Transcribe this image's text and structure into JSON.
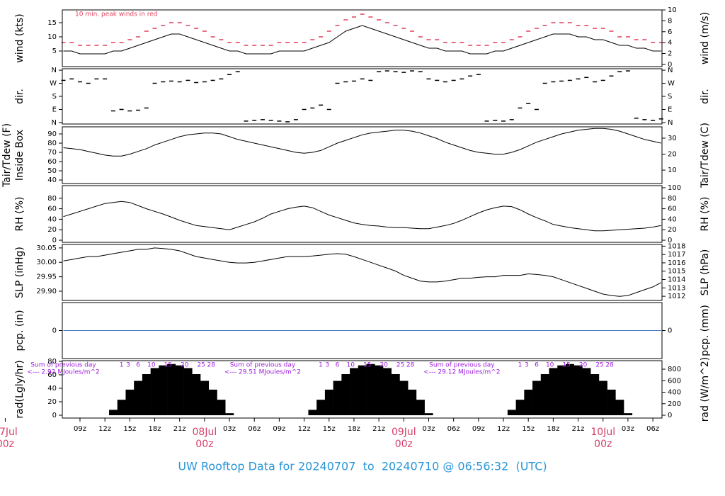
{
  "chart_data": {
    "type": "line",
    "title": "UW Rooftop Data for 20240707  to  20240710 @ 06:56:32  (UTC)",
    "x": [
      7,
      8,
      9,
      10,
      11,
      12,
      13,
      14,
      15,
      16,
      17,
      18,
      19,
      20,
      21,
      22,
      23,
      24,
      25,
      26,
      27,
      28,
      29,
      30,
      31,
      32,
      33,
      34,
      35,
      36,
      37,
      38,
      39,
      40,
      41,
      42,
      43,
      44,
      45,
      46,
      47,
      48,
      49,
      50,
      51,
      52,
      53,
      54,
      55,
      56,
      57,
      58,
      59,
      60,
      61,
      62,
      63,
      64,
      65,
      66,
      67,
      68,
      69,
      70,
      71,
      72,
      73,
      74,
      75,
      76,
      77,
      78,
      79
    ],
    "xlim": [
      6.87,
      79.1
    ],
    "xticks": [
      {
        "value": 9,
        "label": "09z"
      },
      {
        "value": 12,
        "label": "12z"
      },
      {
        "value": 15,
        "label": "15z"
      },
      {
        "value": 18,
        "label": "18z"
      },
      {
        "value": 21,
        "label": "21z"
      },
      {
        "value": 27,
        "label": "03z"
      },
      {
        "value": 30,
        "label": "06z"
      },
      {
        "value": 33,
        "label": "09z"
      },
      {
        "value": 36,
        "label": "12z"
      },
      {
        "value": 39,
        "label": "15z"
      },
      {
        "value": 42,
        "label": "18z"
      },
      {
        "value": 45,
        "label": "21z"
      },
      {
        "value": 51,
        "label": "03z"
      },
      {
        "value": 54,
        "label": "06z"
      },
      {
        "value": 57,
        "label": "09z"
      },
      {
        "value": 60,
        "label": "12z"
      },
      {
        "value": 63,
        "label": "15z"
      },
      {
        "value": 66,
        "label": "18z"
      },
      {
        "value": 69,
        "label": "21z"
      },
      {
        "value": 75,
        "label": "03z"
      },
      {
        "value": 78,
        "label": "06z"
      }
    ],
    "date_labels": [
      {
        "value": 0,
        "label": "07Jul",
        "time": "00z"
      },
      {
        "value": 24,
        "label": "08Jul",
        "time": "00z"
      },
      {
        "value": 48,
        "label": "09Jul",
        "time": "00z"
      },
      {
        "value": 72,
        "label": "10Jul",
        "time": "00z"
      }
    ],
    "date_color": "#d4406a",
    "panels": [
      {
        "type": "line",
        "ylabel": "wind (kts)",
        "y2label": "wind (m/s)",
        "annotation": "10 min. peak winds in red",
        "annotation_color": "#e0405a",
        "ylim": [
          -0.5,
          19.5
        ],
        "yticks": [
          5,
          10,
          15
        ],
        "y2lim": [
          -0.4,
          10
        ],
        "y2ticks": [
          0,
          2,
          4,
          6,
          8,
          10
        ],
        "series": [
          {
            "type": "dash",
            "color": "#e0405a",
            "values": [
              8,
              8,
              7,
              7,
              7,
              7,
              8,
              8,
              9,
              10,
              12,
              13,
              14,
              15,
              15,
              14,
              13,
              12,
              10,
              9,
              8,
              8,
              7,
              7,
              7,
              7,
              8,
              8,
              8,
              8,
              9,
              10,
              12,
              14,
              16,
              17,
              18,
              17,
              16,
              15,
              14,
              13,
              12,
              10,
              9,
              9,
              8,
              8,
              8,
              7,
              7,
              7,
              8,
              8,
              9,
              10,
              12,
              13,
              14,
              15,
              15,
              15,
              14,
              14,
              13,
              13,
              12,
              10,
              10,
              9,
              9,
              8,
              8
            ]
          },
          {
            "type": "line",
            "color": "#000000",
            "values": [
              5,
              5,
              4,
              4,
              4,
              4,
              5,
              5,
              6,
              7,
              8,
              9,
              10,
              11,
              11,
              10,
              9,
              8,
              7,
              6,
              5,
              5,
              4,
              4,
              4,
              4,
              5,
              5,
              5,
              5,
              6,
              7,
              8,
              10,
              12,
              13,
              14,
              13,
              12,
              11,
              10,
              9,
              8,
              7,
              6,
              6,
              5,
              5,
              5,
              4,
              4,
              4,
              5,
              5,
              6,
              7,
              8,
              9,
              10,
              11,
              11,
              11,
              10,
              10,
              9,
              9,
              8,
              7,
              7,
              6,
              6,
              5,
              5
            ]
          }
        ]
      },
      {
        "type": "scatter",
        "ylabel": "dir.",
        "y2label": "dir.",
        "ylim": [
          -10,
          370
        ],
        "yticks": [
          {
            "value": 0,
            "label": "N"
          },
          {
            "value": 90,
            "label": "E"
          },
          {
            "value": 180,
            "label": "S"
          },
          {
            "value": 270,
            "label": "W"
          },
          {
            "value": 360,
            "label": "N"
          }
        ],
        "y2lim": [
          -10,
          370
        ],
        "y2ticks": [
          {
            "value": 0,
            "label": "N"
          },
          {
            "value": 90,
            "label": "E"
          },
          {
            "value": 180,
            "label": "S"
          },
          {
            "value": 270,
            "label": "W"
          },
          {
            "value": 360,
            "label": "N"
          }
        ],
        "series": [
          {
            "type": "dash",
            "color": "#000000",
            "values": [
              290,
              300,
              280,
              270,
              300,
              300,
              80,
              90,
              80,
              85,
              100,
              270,
              280,
              285,
              280,
              290,
              275,
              280,
              290,
              300,
              330,
              350,
              10,
              15,
              20,
              15,
              10,
              5,
              20,
              90,
              100,
              120,
              90,
              270,
              280,
              285,
              300,
              290,
              350,
              355,
              350,
              345,
              355,
              350,
              300,
              290,
              280,
              290,
              300,
              320,
              330,
              10,
              15,
              10,
              20,
              100,
              130,
              90,
              270,
              280,
              285,
              290,
              300,
              310,
              280,
              290,
              320,
              350,
              355,
              30,
              20,
              15,
              25
            ]
          }
        ]
      },
      {
        "type": "line",
        "ylabel": "Tair/Tdew (F)",
        "ylabel_inner": "Inside Box",
        "y2label": "Tair/Tdew (C)",
        "ylim": [
          36.2,
          97.7
        ],
        "yticks": [
          40,
          50,
          60,
          70,
          80,
          90
        ],
        "y2lim": [
          1.6,
          37.1
        ],
        "y2ticks": [
          10,
          20,
          30
        ],
        "series": [
          {
            "type": "line",
            "color": "#000000",
            "values": [
              75,
              74,
              73,
              71,
              69,
              67,
              66,
              66,
              68,
              71,
              74,
              78,
              81,
              84,
              87,
              89,
              90,
              91,
              91,
              90,
              87,
              84,
              82,
              80,
              78,
              76,
              74,
              72,
              70,
              69,
              70,
              72,
              76,
              80,
              83,
              86,
              89,
              91,
              92,
              93,
              94,
              94,
              93,
              91,
              88,
              85,
              81,
              78,
              75,
              72,
              70,
              69,
              68,
              68,
              70,
              73,
              77,
              81,
              84,
              87,
              90,
              92,
              94,
              95,
              96,
              96,
              95,
              93,
              90,
              87,
              84,
              82,
              80
            ]
          }
        ]
      },
      {
        "type": "line",
        "ylabel": "RH (%)",
        "y2label": "RH (%)",
        "ylim": [
          -4,
          104
        ],
        "yticks": [
          0,
          20,
          40,
          60,
          80
        ],
        "y2lim": [
          -4,
          104
        ],
        "y2ticks": [
          0,
          20,
          40,
          60,
          80,
          100
        ],
        "series": [
          {
            "type": "line",
            "color": "#000000",
            "values": [
              45,
              50,
              55,
              60,
              65,
              70,
              72,
              74,
              72,
              66,
              60,
              55,
              50,
              44,
              38,
              33,
              28,
              26,
              24,
              22,
              20,
              25,
              30,
              35,
              42,
              50,
              55,
              60,
              63,
              65,
              62,
              55,
              48,
              43,
              38,
              33,
              30,
              28,
              27,
              25,
              24,
              24,
              23,
              22,
              22,
              25,
              28,
              32,
              38,
              45,
              52,
              58,
              62,
              65,
              64,
              58,
              50,
              43,
              37,
              30,
              27,
              24,
              22,
              20,
              18,
              18,
              19,
              20,
              21,
              22,
              23,
              25,
              28
            ]
          }
        ]
      },
      {
        "type": "line",
        "ylabel": "SLP (inHg)",
        "y2label": "SLP (hPa)",
        "ylim": [
          29.868,
          30.062
        ],
        "yticks": [
          {
            "value": 29.9,
            "label": "29.90"
          },
          29.95,
          {
            "value": 30,
            "label": "30.00"
          },
          30.05
        ],
        "y2lim": [
          1011.5,
          1018.2
        ],
        "y2ticks": [
          1012,
          1013,
          1014,
          1015,
          1016,
          1017,
          1018
        ],
        "series": [
          {
            "type": "line",
            "color": "#000000",
            "values": [
              30.005,
              30.01,
              30.015,
              30.02,
              30.02,
              30.025,
              30.03,
              30.035,
              30.04,
              30.045,
              30.045,
              30.05,
              30.048,
              30.045,
              30.04,
              30.03,
              30.02,
              30.015,
              30.01,
              30.005,
              30.0,
              29.998,
              29.998,
              30.0,
              30.005,
              30.01,
              30.015,
              30.02,
              30.02,
              30.02,
              30.022,
              30.025,
              30.028,
              30.03,
              30.028,
              30.02,
              30.01,
              30.0,
              29.99,
              29.98,
              29.97,
              29.955,
              29.945,
              29.935,
              29.932,
              29.932,
              29.935,
              29.94,
              29.945,
              29.945,
              29.948,
              29.95,
              29.95,
              29.955,
              29.955,
              29.955,
              29.96,
              29.958,
              29.955,
              29.95,
              29.94,
              29.93,
              29.92,
              29.91,
              29.9,
              29.89,
              29.885,
              29.882,
              29.885,
              29.895,
              29.905,
              29.915,
              29.93
            ]
          }
        ]
      },
      {
        "type": "line",
        "ylabel": "pcp. (in)",
        "y2label": "pcp. (mm)",
        "ylim": [
          -1,
          1
        ],
        "yticks": [
          0
        ],
        "y2lim": [
          -1,
          1
        ],
        "y2ticks": [
          0
        ],
        "series": [
          {
            "type": "line",
            "color": "#4472c4",
            "values": [
              0,
              0,
              0,
              0,
              0,
              0,
              0,
              0,
              0,
              0,
              0,
              0,
              0,
              0,
              0,
              0,
              0,
              0,
              0,
              0,
              0,
              0,
              0,
              0,
              0,
              0,
              0,
              0,
              0,
              0,
              0,
              0,
              0,
              0,
              0,
              0,
              0,
              0,
              0,
              0,
              0,
              0,
              0,
              0,
              0,
              0,
              0,
              0,
              0,
              0,
              0,
              0,
              0,
              0,
              0,
              0,
              0,
              0,
              0,
              0,
              0,
              0,
              0,
              0,
              0,
              0,
              0,
              0,
              0,
              0,
              0,
              0,
              0
            ]
          }
        ]
      },
      {
        "type": "bar",
        "ylabel": "rad(Lgly/hr)",
        "y2label": "rad (W/m^2)",
        "ylim": [
          -4.2,
          81
        ],
        "yticks": [
          0,
          20,
          40,
          60,
          80
        ],
        "y2lim": [
          -49,
          948
        ],
        "y2ticks": [
          0,
          200,
          400,
          600,
          800
        ],
        "note_color": "#a020e0",
        "notes": [
          {
            "title": "Sum of previous day",
            "text": "<--- 2.92 MJoules/m^2"
          },
          {
            "title": "Sum of previous day",
            "text": "<--- 29.51 MJoules/m^2"
          },
          {
            "title": "Sum of previous day",
            "text": "<--- 29.12 MJoules/m^2"
          }
        ],
        "hour_marks": [
          1,
          3,
          6,
          10,
          15,
          20,
          25,
          28
        ],
        "series": [
          {
            "type": "bar",
            "color": "#000000",
            "values": [
              0,
              0,
              0,
              0,
              0,
              0,
              8,
              23,
              38,
              51,
              61,
              70,
              74,
              76,
              74,
              70,
              61,
              51,
              38,
              23,
              3,
              0,
              0,
              0,
              0,
              0,
              0,
              0,
              0,
              0,
              8,
              23,
              38,
              51,
              61,
              70,
              74,
              76,
              74,
              70,
              61,
              51,
              38,
              23,
              3,
              0,
              0,
              0,
              0,
              0,
              0,
              0,
              0,
              0,
              8,
              23,
              38,
              51,
              61,
              70,
              74,
              76,
              74,
              70,
              61,
              51,
              38,
              23,
              3,
              0,
              0,
              0,
              0
            ]
          }
        ]
      }
    ]
  }
}
